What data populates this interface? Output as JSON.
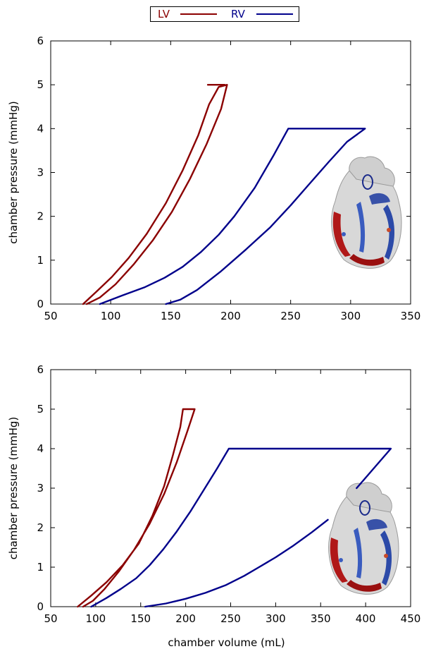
{
  "legend": {
    "items": [
      {
        "label": "LV",
        "color": "#8b0000"
      },
      {
        "label": "RV",
        "color": "#00008b"
      }
    ]
  },
  "chart_data": [
    {
      "type": "line",
      "xlabel": "chamber volume (mL)",
      "ylabel": "chamber pressure (mmHg)",
      "xlim": [
        50,
        350
      ],
      "ylim": [
        0,
        6
      ],
      "xticks": [
        "50",
        "100",
        "150",
        "200",
        "250",
        "300",
        "350"
      ],
      "yticks": [
        "0",
        "1",
        "2",
        "3",
        "4",
        "5",
        "6"
      ],
      "inset_image": "heart-cutaway",
      "series": [
        {
          "name": "LV",
          "color": "#8b0000",
          "x": [
            77,
            88,
            101,
            115,
            130,
            146,
            160,
            173,
            182,
            190,
            197,
            192,
            180,
            166,
            151,
            135,
            119,
            104,
            91,
            80
          ],
          "y": [
            0,
            0.28,
            0.62,
            1.05,
            1.6,
            2.3,
            3.05,
            3.85,
            4.55,
            4.95,
            5,
            4.45,
            3.65,
            2.85,
            2.1,
            1.45,
            0.9,
            0.45,
            0.15,
            0
          ]
        },
        {
          "name": "LV-topcap",
          "color": "#8b0000",
          "x": [
            181,
            195
          ],
          "y": [
            5,
            5
          ]
        },
        {
          "name": "RV",
          "color": "#00008b",
          "x": [
            91,
            110,
            128,
            145,
            160,
            175,
            190,
            203,
            220,
            236,
            248,
            312,
            297,
            282,
            266,
            250,
            233,
            213,
            192,
            172,
            158,
            146
          ],
          "y": [
            0,
            0.2,
            0.38,
            0.6,
            0.85,
            1.18,
            1.58,
            2.0,
            2.65,
            3.4,
            4.0,
            4.0,
            3.7,
            3.25,
            2.75,
            2.25,
            1.75,
            1.25,
            0.75,
            0.32,
            0.1,
            0
          ]
        }
      ]
    },
    {
      "type": "line",
      "xlabel": "chamber volume (mL)",
      "ylabel": "chamber pressure (mmHg)",
      "xlim": [
        50,
        450
      ],
      "ylim": [
        0,
        6
      ],
      "xticks": [
        "50",
        "100",
        "150",
        "200",
        "250",
        "300",
        "350",
        "400",
        "450"
      ],
      "yticks": [
        "0",
        "1",
        "2",
        "3",
        "4",
        "5",
        "6"
      ],
      "inset_image": "heart-cutaway",
      "series": [
        {
          "name": "LV",
          "color": "#8b0000",
          "x": [
            80,
            95,
            112,
            130,
            148,
            163,
            176,
            186,
            194,
            197,
            210,
            202,
            190,
            176,
            160,
            143,
            126,
            110,
            97,
            86
          ],
          "y": [
            0,
            0.28,
            0.62,
            1.05,
            1.6,
            2.3,
            3.05,
            3.85,
            4.55,
            5,
            5,
            4.45,
            3.65,
            2.85,
            2.1,
            1.45,
            0.9,
            0.45,
            0.15,
            0
          ]
        },
        {
          "name": "RV",
          "color": "#00008b",
          "x": [
            95,
            112,
            128,
            145,
            160,
            175,
            190,
            205,
            220,
            235,
            248,
            428,
            390
          ],
          "y": [
            0,
            0.22,
            0.45,
            0.72,
            1.05,
            1.45,
            1.9,
            2.4,
            2.95,
            3.5,
            4.0,
            4.0,
            3.0
          ]
        },
        {
          "name": "RV-lower",
          "color": "#00008b",
          "x": [
            358,
            340,
            320,
            300,
            280,
            265,
            245,
            222,
            200,
            178,
            155
          ],
          "y": [
            2.2,
            1.88,
            1.55,
            1.25,
            0.98,
            0.78,
            0.55,
            0.35,
            0.2,
            0.08,
            0
          ]
        }
      ]
    }
  ]
}
